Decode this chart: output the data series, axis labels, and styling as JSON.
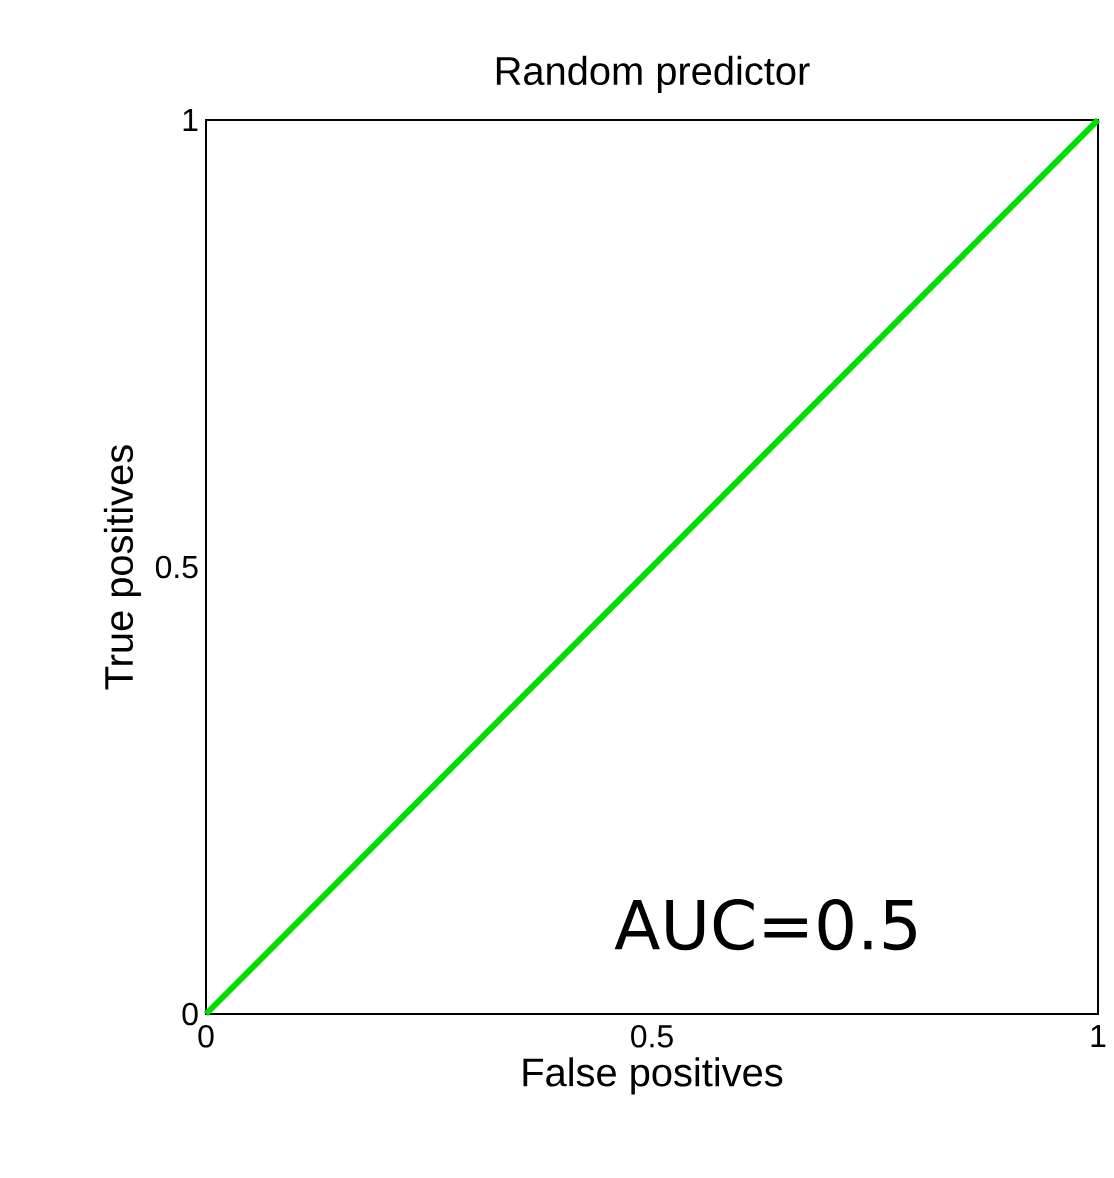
{
  "chart_data": {
    "type": "line",
    "title": "Random predictor",
    "xlabel": "False positives",
    "ylabel": "True positives",
    "x": [
      0,
      1
    ],
    "series": [
      {
        "color": "#00dd00",
        "values": [
          0,
          1
        ]
      }
    ],
    "xlim": [
      0,
      1
    ],
    "ylim": [
      0,
      1
    ],
    "xticks": [
      0,
      0.5,
      1
    ],
    "yticks": [
      0,
      0.5,
      1
    ],
    "annotations": [
      "AUC=0.5"
    ]
  }
}
